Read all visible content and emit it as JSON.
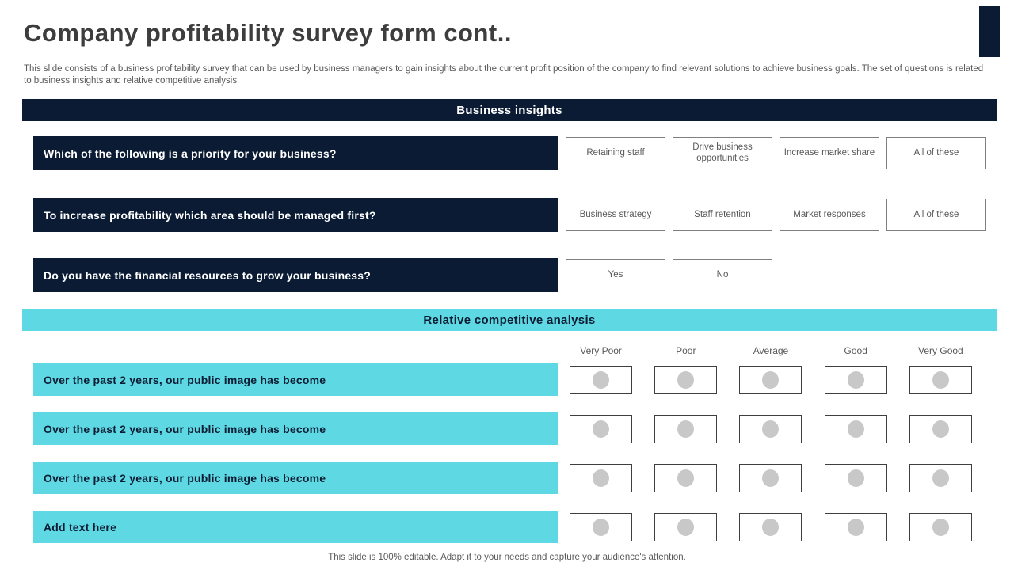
{
  "slide": {
    "title": "Company profitability survey form cont..",
    "description": "This slide consists of a business profitability survey that can be used by business managers to gain insights about the current profit position of the company to find relevant solutions to achieve business goals. The set of questions is related to business insights and relative competitive analysis",
    "footer": "This slide is 100% editable. Adapt it to your needs and capture your audience's attention."
  },
  "colors": {
    "navy": "#0a1b33",
    "teal": "#5ed8e2",
    "title_text": "#3d3d3d",
    "body_text": "#595959",
    "option_border": "#7f7f7f",
    "rating_border": "#3f3f3f",
    "radio_fill": "#c8c8c8"
  },
  "sections": {
    "business_insights": {
      "heading": "Business insights",
      "questions": [
        {
          "text": "Which of the following is a priority for your business?",
          "options": [
            "Retaining staff",
            "Drive business opportunities",
            "Increase market share",
            "All of these"
          ]
        },
        {
          "text": "To increase profitability which area should be managed first?",
          "options": [
            "Business strategy",
            "Staff retention",
            "Market responses",
            "All of these"
          ]
        },
        {
          "text": "Do you have the financial resources to grow your business?",
          "options": [
            "Yes",
            "No"
          ]
        }
      ]
    },
    "competitive_analysis": {
      "heading": "Relative competitive analysis",
      "scale": [
        "Very Poor",
        "Poor",
        "Average",
        "Good",
        "Very Good"
      ],
      "statements": [
        "Over the past 2 years, our public image has become",
        "Over the past 2 years, our public image has become",
        "Over the past 2 years, our public image has become",
        "Add text here"
      ]
    }
  }
}
